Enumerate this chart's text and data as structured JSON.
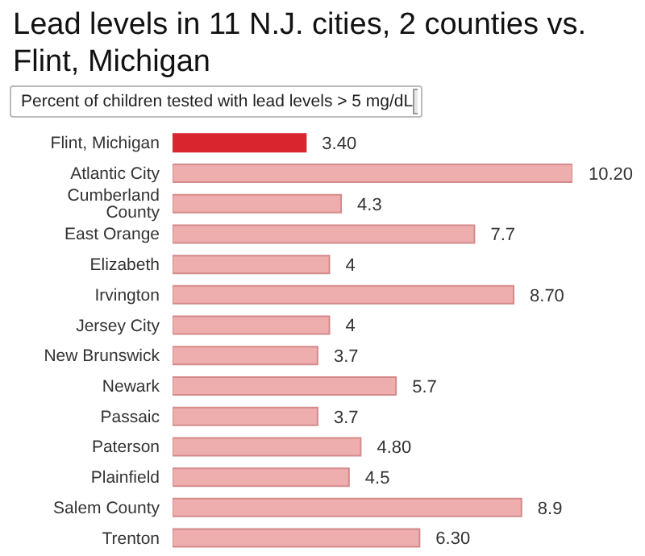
{
  "chart_data": {
    "type": "bar",
    "orientation": "horizontal",
    "title": "Lead levels in 11 N.J. cities, 2 counties vs. Flint, Michigan",
    "subtitle": "Percent of children tested with lead levels > 5 mg/dL",
    "categories": [
      "Flint, Michigan",
      "Atlantic City",
      "Cumberland County",
      "East Orange",
      "Elizabeth",
      "Irvington",
      "Jersey City",
      "New Brunswick",
      "Newark",
      "Passaic",
      "Paterson",
      "Plainfield",
      "Salem County",
      "Trenton"
    ],
    "values": [
      3.4,
      10.2,
      4.3,
      7.7,
      4,
      8.7,
      4,
      3.7,
      5.7,
      3.7,
      4.8,
      4.5,
      8.9,
      6.3
    ],
    "value_labels": [
      "3.40",
      "10.20",
      "4.3",
      "7.7",
      "4",
      "8.70",
      "4",
      "3.7",
      "5.7",
      "3.7",
      "4.80",
      "4.5",
      "8.9",
      "6.30"
    ],
    "colors": [
      "#d9262e",
      "#eeaeae",
      "#eeaeae",
      "#eeaeae",
      "#eeaeae",
      "#eeaeae",
      "#eeaeae",
      "#eeaeae",
      "#eeaeae",
      "#eeaeae",
      "#eeaeae",
      "#eeaeae",
      "#eeaeae",
      "#eeaeae"
    ],
    "grid": false,
    "legend": false
  }
}
